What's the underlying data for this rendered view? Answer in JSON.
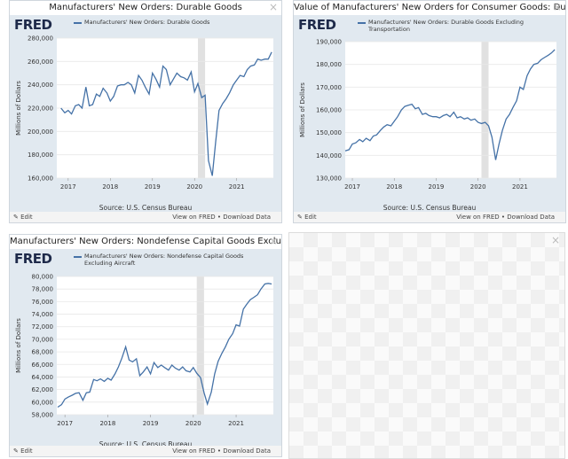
{
  "chart_data": [
    {
      "type": "line",
      "title": "Manufacturers' New Orders: Durable Goods",
      "x": [
        2016.83,
        2016.92,
        2017.0,
        2017.08,
        2017.17,
        2017.25,
        2017.33,
        2017.42,
        2017.5,
        2017.58,
        2017.67,
        2017.75,
        2017.83,
        2017.92,
        2018.0,
        2018.08,
        2018.17,
        2018.25,
        2018.33,
        2018.42,
        2018.5,
        2018.58,
        2018.67,
        2018.75,
        2018.83,
        2018.92,
        2019.0,
        2019.08,
        2019.17,
        2019.25,
        2019.33,
        2019.42,
        2019.5,
        2019.58,
        2019.67,
        2019.75,
        2019.83,
        2019.92,
        2020.0,
        2020.08,
        2020.17,
        2020.25,
        2020.33,
        2020.42,
        2020.5,
        2020.58,
        2020.67,
        2020.75,
        2020.83,
        2020.92,
        2021.0,
        2021.08,
        2021.17,
        2021.25,
        2021.33,
        2021.42,
        2021.5,
        2021.58,
        2021.67,
        2021.75,
        2021.83
      ],
      "xlim": [
        2016.73,
        2021.87
      ],
      "xticks": [
        2017,
        2018,
        2019,
        2020,
        2021
      ],
      "series": [
        {
          "name": "Manufacturers' New Orders: Durable Goods",
          "color": "#4572a7",
          "values": [
            220000,
            216000,
            218000,
            215000,
            222000,
            223000,
            220000,
            238000,
            222000,
            223000,
            232000,
            230000,
            237000,
            233000,
            226000,
            230000,
            239000,
            240000,
            240000,
            242000,
            240000,
            233000,
            248000,
            244000,
            238000,
            232000,
            250000,
            245000,
            238000,
            256000,
            253000,
            240000,
            245000,
            250000,
            247000,
            246000,
            244000,
            251000,
            234000,
            241000,
            229000,
            231000,
            175000,
            162000,
            191000,
            218000,
            224000,
            228000,
            233000,
            240000,
            244000,
            248000,
            247000,
            253000,
            256000,
            257000,
            262000,
            261000,
            262000,
            262000,
            268000
          ]
        }
      ],
      "ylim": [
        160000,
        280000
      ],
      "yticks": [
        {
          "value": 160000,
          "label": "160,000"
        },
        {
          "value": 180000,
          "label": "180,000"
        },
        {
          "value": 200000,
          "label": "200,000"
        },
        {
          "value": 220000,
          "label": "220,000"
        },
        {
          "value": 240000,
          "label": "240,000"
        },
        {
          "value": 260000,
          "label": "260,000"
        },
        {
          "value": 280000,
          "label": "280,000"
        }
      ],
      "ylabel": "Millions of Dollars",
      "source": "Source: U.S. Census Bureau",
      "shaded": [
        [
          2020.08,
          2020.25
        ]
      ],
      "grid": true
    },
    {
      "type": "line",
      "title": "Value of Manufacturers' New Orders for Consumer Goods: Durable Go...",
      "x": [
        2016.83,
        2016.92,
        2017.0,
        2017.08,
        2017.17,
        2017.25,
        2017.33,
        2017.42,
        2017.5,
        2017.58,
        2017.67,
        2017.75,
        2017.83,
        2017.92,
        2018.0,
        2018.08,
        2018.17,
        2018.25,
        2018.33,
        2018.42,
        2018.5,
        2018.58,
        2018.67,
        2018.75,
        2018.83,
        2018.92,
        2019.0,
        2019.08,
        2019.17,
        2019.25,
        2019.33,
        2019.42,
        2019.5,
        2019.58,
        2019.67,
        2019.75,
        2019.83,
        2019.92,
        2020.0,
        2020.08,
        2020.17,
        2020.25,
        2020.33,
        2020.42,
        2020.5,
        2020.58,
        2020.67,
        2020.75,
        2020.83,
        2020.92,
        2021.0,
        2021.08,
        2021.17,
        2021.25,
        2021.33,
        2021.42,
        2021.5,
        2021.58,
        2021.67,
        2021.75,
        2021.83
      ],
      "xlim": [
        2016.83,
        2021.87
      ],
      "xticks": [
        2017,
        2018,
        2019,
        2020,
        2021
      ],
      "series": [
        {
          "name": "Manufacturers' New Orders: Durable Goods Excluding Transportation",
          "color": "#4572a7",
          "values": [
            142000,
            142500,
            145000,
            145500,
            147000,
            146000,
            147500,
            146500,
            148500,
            149000,
            151000,
            152500,
            153500,
            153000,
            155000,
            157000,
            160000,
            161500,
            162000,
            162500,
            160500,
            161000,
            158000,
            158500,
            157500,
            157000,
            157000,
            156500,
            157500,
            158000,
            157000,
            159000,
            156500,
            157000,
            156000,
            156500,
            155500,
            156000,
            154500,
            154000,
            154500,
            153000,
            148000,
            138000,
            145000,
            151000,
            156000,
            158000,
            161000,
            164000,
            170000,
            169000,
            175000,
            178000,
            180000,
            180500,
            182000,
            183000,
            184000,
            185000,
            186500
          ]
        }
      ],
      "ylim": [
        130000,
        190000
      ],
      "yticks": [
        {
          "value": 130000,
          "label": "130,000"
        },
        {
          "value": 140000,
          "label": "140,000"
        },
        {
          "value": 150000,
          "label": "150,000"
        },
        {
          "value": 160000,
          "label": "160,000"
        },
        {
          "value": 170000,
          "label": "170,000"
        },
        {
          "value": 180000,
          "label": "180,000"
        },
        {
          "value": 190000,
          "label": "190,000"
        }
      ],
      "ylabel": "Millions of Dollars",
      "source": "Source: U.S. Census Bureau",
      "shaded": [
        [
          2020.08,
          2020.25
        ]
      ],
      "grid": true
    },
    {
      "type": "line",
      "title": "Manufacturers' New Orders: Nondefense Capital Goods Excluding Aircr...",
      "x": [
        2016.83,
        2016.92,
        2017.0,
        2017.08,
        2017.17,
        2017.25,
        2017.33,
        2017.42,
        2017.5,
        2017.58,
        2017.67,
        2017.75,
        2017.83,
        2017.92,
        2018.0,
        2018.08,
        2018.17,
        2018.25,
        2018.33,
        2018.42,
        2018.5,
        2018.58,
        2018.67,
        2018.75,
        2018.83,
        2018.92,
        2019.0,
        2019.08,
        2019.17,
        2019.25,
        2019.33,
        2019.42,
        2019.5,
        2019.58,
        2019.67,
        2019.75,
        2019.83,
        2019.92,
        2020.0,
        2020.08,
        2020.17,
        2020.25,
        2020.33,
        2020.42,
        2020.5,
        2020.58,
        2020.67,
        2020.75,
        2020.83,
        2020.92,
        2021.0,
        2021.08,
        2021.17,
        2021.25,
        2021.33,
        2021.42,
        2021.5,
        2021.58,
        2021.67,
        2021.75,
        2021.83
      ],
      "xlim": [
        2016.81,
        2021.87
      ],
      "xticks": [
        2017,
        2018,
        2019,
        2020,
        2021
      ],
      "series": [
        {
          "name": "Manufacturers' New Orders: Nondefense Capital Goods Excluding Aircraft",
          "color": "#4572a7",
          "values": [
            59200,
            59600,
            60500,
            60800,
            61100,
            61400,
            61500,
            60300,
            61500,
            61600,
            63600,
            63400,
            63700,
            63300,
            63800,
            63500,
            64500,
            65600,
            67000,
            68800,
            66700,
            66400,
            66900,
            64200,
            64800,
            65600,
            64500,
            66300,
            65500,
            65900,
            65500,
            65100,
            65900,
            65400,
            65100,
            65600,
            65000,
            64800,
            65500,
            64600,
            63900,
            61500,
            59700,
            61600,
            64500,
            66500,
            67800,
            68800,
            70000,
            70900,
            72300,
            72100,
            74800,
            75600,
            76300,
            76700,
            77100,
            78000,
            78800,
            78900,
            78800
          ]
        }
      ],
      "ylim": [
        58000,
        80000
      ],
      "yticks": [
        {
          "value": 58000,
          "label": "58,000"
        },
        {
          "value": 60000,
          "label": "60,000"
        },
        {
          "value": 62000,
          "label": "62,000"
        },
        {
          "value": 64000,
          "label": "64,000"
        },
        {
          "value": 66000,
          "label": "66,000"
        },
        {
          "value": 68000,
          "label": "68,000"
        },
        {
          "value": 70000,
          "label": "70,000"
        },
        {
          "value": 72000,
          "label": "72,000"
        },
        {
          "value": 74000,
          "label": "74,000"
        },
        {
          "value": 76000,
          "label": "76,000"
        },
        {
          "value": 78000,
          "label": "78,000"
        },
        {
          "value": 80000,
          "label": "80,000"
        }
      ],
      "ylabel": "Millions of Dollars",
      "source": "Source: U.S. Census Bureau",
      "shaded": [
        [
          2020.08,
          2020.25
        ]
      ],
      "grid": true
    }
  ],
  "ui": {
    "logo": "FRED",
    "edit": "Edit",
    "view": "View on FRED",
    "download": "Download Data"
  }
}
